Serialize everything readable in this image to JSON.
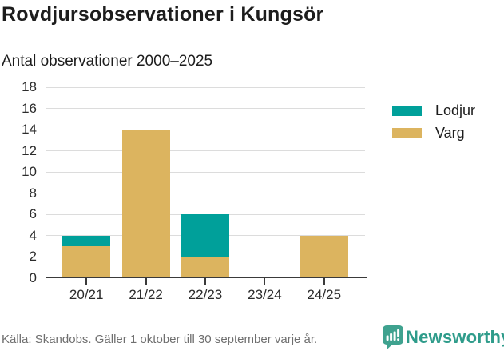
{
  "chart_data": {
    "type": "bar",
    "stacked": true,
    "title": "Rovdjursobservationer i Kungsör",
    "subtitle": "Antal observationer 2000–2025",
    "categories": [
      "20/21",
      "21/22",
      "22/23",
      "23/24",
      "24/25"
    ],
    "series": [
      {
        "name": "Varg",
        "color": "#DCB45F",
        "values": [
          3,
          14,
          2,
          0,
          4
        ]
      },
      {
        "name": "Lodjur",
        "color": "#00A09A",
        "values": [
          1,
          0,
          4,
          0,
          0
        ]
      }
    ],
    "legend": [
      "Lodjur",
      "Varg"
    ],
    "legend_position": "right",
    "xlabel": "",
    "ylabel": "",
    "ylim": [
      0,
      18
    ],
    "yticks": [
      0,
      2,
      4,
      6,
      8,
      10,
      12,
      14,
      16,
      18
    ],
    "grid": "horizontal"
  },
  "footer": {
    "source": "Källa: Skandobs. Gäller 1 oktober till 30 september varje år.",
    "brand": "Newsworthy"
  },
  "colors": {
    "lodjur": "#00A09A",
    "varg": "#DCB45F",
    "brand_teal": "#2f9c8b",
    "logo_icon_teal": "#3FA28F",
    "gridline": "#dcdcdc",
    "axis": "#3a3a3a",
    "text_dark": "#1d1d1d",
    "text_muted": "#6f6f6f"
  }
}
